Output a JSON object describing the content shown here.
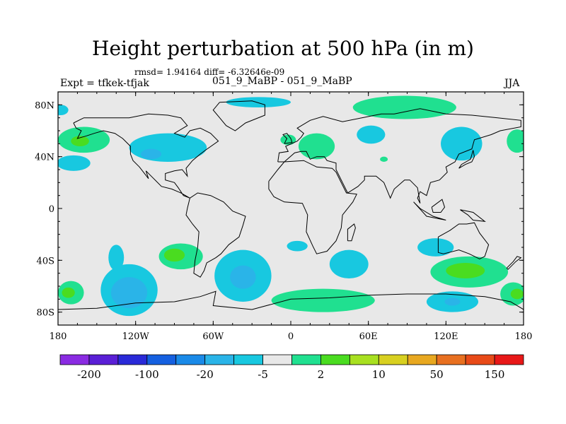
{
  "header": {
    "title": "Height perturbation at 500 hPa (in m)",
    "stats": "rmsd= 1.94164 diff= -6.32646e-09",
    "left_label": "Expt = tfkek-tfjak",
    "center_label": "051_9_MaBP - 051_9_MaBP",
    "right_label": "JJA"
  },
  "chart_data": {
    "type": "heatmap",
    "title": "Height perturbation at 500 hPa (in m)",
    "xlabel": "",
    "ylabel": "",
    "xlim": [
      -180,
      180
    ],
    "ylim": [
      -90,
      90
    ],
    "x_ticks": [
      {
        "value": -180,
        "label": "180"
      },
      {
        "value": -120,
        "label": "120W"
      },
      {
        "value": -60,
        "label": "60W"
      },
      {
        "value": 0,
        "label": "0"
      },
      {
        "value": 60,
        "label": "60E"
      },
      {
        "value": 120,
        "label": "120E"
      },
      {
        "value": 180,
        "label": "180"
      }
    ],
    "y_ticks": [
      {
        "value": 80,
        "label": "80N"
      },
      {
        "value": 40,
        "label": "40N"
      },
      {
        "value": 0,
        "label": "0"
      },
      {
        "value": -40,
        "label": "40S"
      },
      {
        "value": -80,
        "label": "80S"
      }
    ],
    "colorbar": {
      "colors": [
        "#8a2be2",
        "#5a1fd6",
        "#2a2ad8",
        "#1560e0",
        "#1a8ae8",
        "#2ab4e8",
        "#18c8e0",
        "#e8e8e8",
        "#20e090",
        "#4adc20",
        "#a8e020",
        "#d8d020",
        "#e8a820",
        "#e87020",
        "#e84a18",
        "#e81818"
      ],
      "tick_labels": [
        "-200",
        "-100",
        "-20",
        "-5",
        "2",
        "10",
        "50",
        "150"
      ],
      "background": "#e8e8e8"
    },
    "features": [
      {
        "name": "na-pacific-low",
        "lon": -95,
        "lat": 47,
        "rx": 30,
        "ry": 11,
        "level": "light-blue"
      },
      {
        "name": "na-pacific-low-core",
        "lon": -108,
        "lat": 42,
        "rx": 8,
        "ry": 4,
        "level": "blue"
      },
      {
        "name": "east-pac-low",
        "lon": -168,
        "lat": 35,
        "rx": 13,
        "ry": 6,
        "level": "light-blue"
      },
      {
        "name": "north-pac-high",
        "lon": -160,
        "lat": 53,
        "rx": 20,
        "ry": 10,
        "level": "green"
      },
      {
        "name": "north-pac-high-core",
        "lon": -163,
        "lat": 52,
        "rx": 7,
        "ry": 4,
        "level": "yellow-green"
      },
      {
        "name": "greenland-low",
        "lon": -25,
        "lat": 82,
        "rx": 25,
        "ry": 4,
        "level": "light-blue"
      },
      {
        "name": "nw-pacific-edge-low",
        "lon": -178,
        "lat": 76,
        "rx": 6,
        "ry": 4,
        "level": "light-blue"
      },
      {
        "name": "europe-high",
        "lon": -2,
        "lat": 53,
        "rx": 6,
        "ry": 4,
        "level": "green"
      },
      {
        "name": "arctic-siberia-high",
        "lon": 88,
        "lat": 78,
        "rx": 40,
        "ry": 9,
        "level": "green"
      },
      {
        "name": "siberia-low",
        "lon": 62,
        "lat": 57,
        "rx": 11,
        "ry": 7,
        "level": "light-blue"
      },
      {
        "name": "eurasia-high",
        "lon": 20,
        "lat": 48,
        "rx": 14,
        "ry": 10,
        "level": "green"
      },
      {
        "name": "east-asia-low",
        "lon": 132,
        "lat": 50,
        "rx": 16,
        "ry": 13,
        "level": "light-blue"
      },
      {
        "name": "japan-high",
        "lon": 175,
        "lat": 52,
        "rx": 8,
        "ry": 9,
        "level": "green"
      },
      {
        "name": "small-high",
        "lon": 72,
        "lat": 38,
        "rx": 3,
        "ry": 2,
        "level": "green"
      },
      {
        "name": "so-pacific-big-low",
        "lon": -125,
        "lat": -63,
        "rx": 22,
        "ry": 20,
        "level": "light-blue"
      },
      {
        "name": "so-pacific-big-low-core",
        "lon": -125,
        "lat": -65,
        "rx": 14,
        "ry": 12,
        "level": "blue"
      },
      {
        "name": "so-pacific-low-tail",
        "lon": -135,
        "lat": -38,
        "rx": 6,
        "ry": 10,
        "level": "light-blue"
      },
      {
        "name": "so-pacific-high",
        "lon": -85,
        "lat": -37,
        "rx": 17,
        "ry": 10,
        "level": "green"
      },
      {
        "name": "so-pacific-high-core",
        "lon": -90,
        "lat": -36,
        "rx": 8,
        "ry": 5,
        "level": "yellow-green"
      },
      {
        "name": "so-atlantic-low",
        "lon": -37,
        "lat": -52,
        "rx": 22,
        "ry": 20,
        "level": "light-blue"
      },
      {
        "name": "so-atlantic-low-core",
        "lon": -37,
        "lat": -53,
        "rx": 10,
        "ry": 9,
        "level": "blue"
      },
      {
        "name": "so-ocean-high",
        "lon": 25,
        "lat": -71,
        "rx": 40,
        "ry": 9,
        "level": "green"
      },
      {
        "name": "so-indian-low",
        "lon": 45,
        "lat": -43,
        "rx": 15,
        "ry": 11,
        "level": "light-blue"
      },
      {
        "name": "so-indian-small-low",
        "lon": 5,
        "lat": -29,
        "rx": 8,
        "ry": 4,
        "level": "light-blue"
      },
      {
        "name": "australia-high",
        "lon": 138,
        "lat": -49,
        "rx": 30,
        "ry": 12,
        "level": "green"
      },
      {
        "name": "australia-high-core",
        "lon": 135,
        "lat": -48,
        "rx": 15,
        "ry": 6,
        "level": "yellow-green"
      },
      {
        "name": "australia-low",
        "lon": 112,
        "lat": -30,
        "rx": 14,
        "ry": 7,
        "level": "light-blue"
      },
      {
        "name": "south-west-pac-low",
        "lon": 125,
        "lat": -72,
        "rx": 20,
        "ry": 8,
        "level": "light-blue"
      },
      {
        "name": "south-west-pac-low-core",
        "lon": 125,
        "lat": -72,
        "rx": 6,
        "ry": 3,
        "level": "blue"
      },
      {
        "name": "sw-pacific-high",
        "lon": 172,
        "lat": -66,
        "rx": 10,
        "ry": 9,
        "level": "green"
      },
      {
        "name": "sw-pacific-high-core",
        "lon": 175,
        "lat": -66,
        "rx": 5,
        "ry": 4,
        "level": "yellow-green"
      },
      {
        "name": "se-pacific-edge-high",
        "lon": -170,
        "lat": -65,
        "rx": 10,
        "ry": 9,
        "level": "green"
      },
      {
        "name": "se-pacific-edge-high-core",
        "lon": -172,
        "lat": -65,
        "rx": 5,
        "ry": 4,
        "level": "yellow-green"
      }
    ],
    "level_colors": {
      "light-blue": "#18c8e0",
      "blue": "#2ab4e8",
      "green": "#20e090",
      "yellow-green": "#4adc20"
    }
  }
}
